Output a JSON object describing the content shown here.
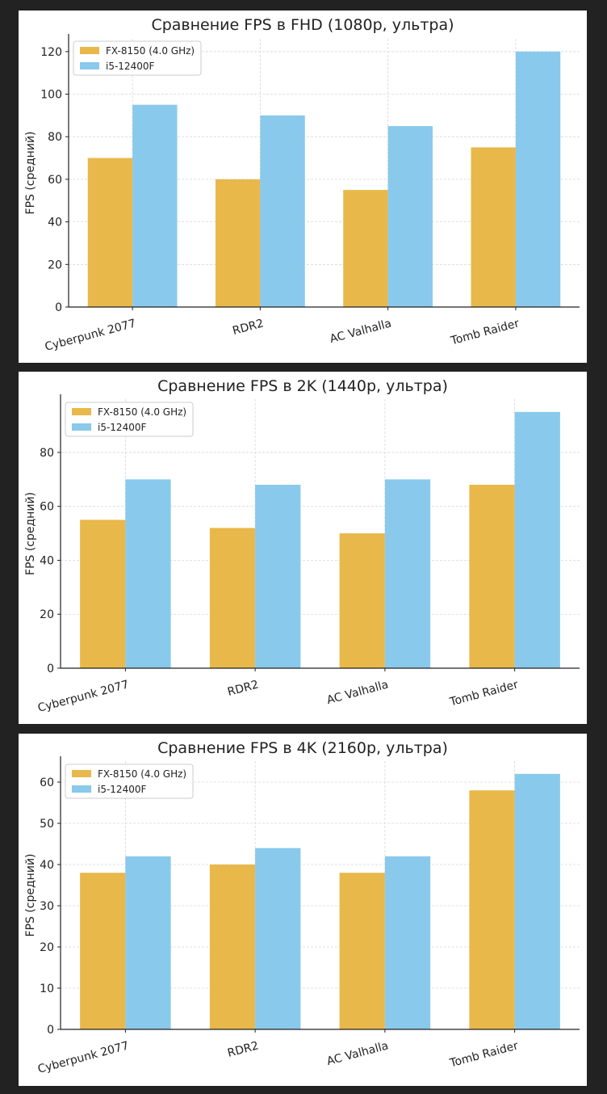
{
  "colors": {
    "fx": "#E8B84A",
    "intel": "#89C9EC",
    "grid": "#D6D6D6",
    "axis": "#222222"
  },
  "chart_data": [
    {
      "type": "bar",
      "title": "Сравнение FPS в FHD (1080р, ультра)",
      "ylabel": "FPS (средний)",
      "xlabel": "",
      "categories": [
        "Cyberpunk 2077",
        "RDR2",
        "AC Valhalla",
        "Tomb Raider"
      ],
      "series": [
        {
          "name": "FX-8150 (4.0 GHz)",
          "values": [
            70,
            60,
            55,
            75
          ]
        },
        {
          "name": "i5-12400F",
          "values": [
            95,
            90,
            85,
            120
          ]
        }
      ],
      "yticks": [
        0,
        20,
        40,
        60,
        80,
        100,
        120
      ],
      "ylim": [
        0,
        126
      ],
      "grid": true,
      "legend": "top-left"
    },
    {
      "type": "bar",
      "title": "Сравнение FPS в 2K (1440р, ультра)",
      "ylabel": "FPS (средний)",
      "xlabel": "",
      "categories": [
        "Cyberpunk 2077",
        "RDR2",
        "AC Valhalla",
        "Tomb Raider"
      ],
      "series": [
        {
          "name": "FX-8150 (4.0 GHz)",
          "values": [
            55,
            52,
            50,
            68
          ]
        },
        {
          "name": "i5-12400F",
          "values": [
            70,
            68,
            70,
            95
          ]
        }
      ],
      "yticks": [
        0,
        20,
        40,
        60,
        80
      ],
      "ylim": [
        0,
        99.75
      ],
      "grid": true,
      "legend": "top-left"
    },
    {
      "type": "bar",
      "title": "Сравнение FPS в 4K (2160р, ультра)",
      "ylabel": "FPS (средний)",
      "xlabel": "",
      "categories": [
        "Cyberpunk 2077",
        "RDR2",
        "AC Valhalla",
        "Tomb Raider"
      ],
      "series": [
        {
          "name": "FX-8150 (4.0 GHz)",
          "values": [
            38,
            40,
            38,
            58
          ]
        },
        {
          "name": "i5-12400F",
          "values": [
            42,
            44,
            42,
            62
          ]
        }
      ],
      "yticks": [
        0,
        10,
        20,
        30,
        40,
        50,
        60
      ],
      "ylim": [
        0,
        65.1
      ],
      "grid": true,
      "legend": "top-left"
    }
  ]
}
